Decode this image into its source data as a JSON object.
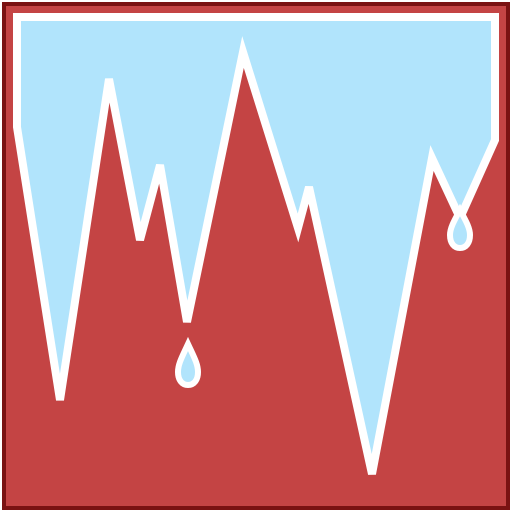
{
  "icon": {
    "name": "ice-drip-icon",
    "colors": {
      "frame_fill": "#C44444",
      "frame_border": "#7A1212",
      "ice_fill": "#B1E4FC",
      "outline": "#FFFFFF"
    }
  }
}
